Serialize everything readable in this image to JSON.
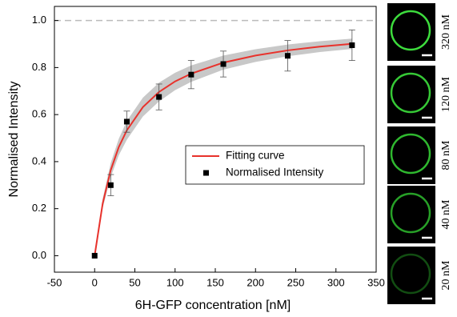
{
  "chart_data": {
    "type": "scatter",
    "x_label": "6H-GFP concentration [nM]",
    "y_label": "Normalised Intensity",
    "xlim": [
      -50,
      350
    ],
    "xticks": [
      -50,
      0,
      50,
      100,
      150,
      200,
      250,
      300,
      350
    ],
    "ylim": [
      -0.07,
      1.06
    ],
    "yticks": [
      {
        "value": 0,
        "label": "0.0"
      },
      0.2,
      0.4,
      0.6,
      0.8,
      {
        "value": 1,
        "label": "1.0"
      }
    ],
    "reference_line": {
      "value": 1,
      "color": "#bbbbbb"
    },
    "legend": "center-right",
    "band": {
      "color": "#c8c8c8",
      "x": [
        0,
        10,
        20,
        30,
        40,
        60,
        80,
        100,
        120,
        160,
        200,
        240,
        280,
        320
      ],
      "lower": [
        0,
        0.202,
        0.334,
        0.427,
        0.493,
        0.592,
        0.656,
        0.704,
        0.739,
        0.791,
        0.824,
        0.848,
        0.866,
        0.879
      ],
      "upper": [
        0,
        0.242,
        0.394,
        0.497,
        0.573,
        0.672,
        0.736,
        0.778,
        0.809,
        0.851,
        0.878,
        0.898,
        0.912,
        0.923
      ]
    },
    "series": [
      {
        "name": "Fitting curve",
        "type": "line",
        "color": "#e8322c",
        "x": [
          0,
          10,
          20,
          30,
          40,
          60,
          80,
          100,
          120,
          160,
          200,
          240,
          280,
          320
        ],
        "values": [
          0,
          0.222,
          0.364,
          0.462,
          0.533,
          0.632,
          0.696,
          0.741,
          0.774,
          0.821,
          0.851,
          0.873,
          0.889,
          0.901
        ]
      },
      {
        "name": "Normalised Intensity",
        "type": "scatter",
        "color": "#000000",
        "x": [
          0,
          20,
          40,
          80,
          120,
          160,
          240,
          320
        ],
        "values": [
          0,
          0.3,
          0.57,
          0.675,
          0.77,
          0.815,
          0.85,
          0.895
        ],
        "errors": [
          0,
          0.045,
          0.045,
          0.055,
          0.06,
          0.055,
          0.065,
          0.065
        ]
      }
    ]
  },
  "images": [
    {
      "label": "320 nM",
      "ring_color": "#3ddc3d"
    },
    {
      "label": "120 nM",
      "ring_color": "#36c936"
    },
    {
      "label": "80 nM",
      "ring_color": "#2fb82f"
    },
    {
      "label": "40 nM",
      "ring_color": "#27a027"
    },
    {
      "label": "20 nM",
      "ring_color": "#124d12"
    }
  ]
}
